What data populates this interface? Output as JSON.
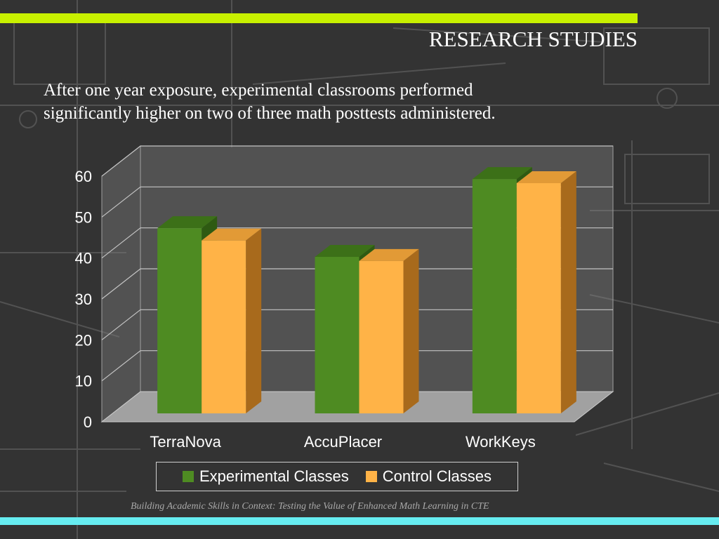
{
  "slide": {
    "title": "RESEARCH STUDIES",
    "subtitle_line1": "After one year exposure, experimental classrooms performed",
    "subtitle_line2": "significantly higher on two of three math posttests administered.",
    "footnote": "Building Academic Skills in Context: Testing the Value of Enhanced Math Learning in CTE"
  },
  "colors": {
    "accent_top": "#c8f000",
    "accent_bottom": "#66ecf0",
    "experimental": "#4e8b22",
    "control": "#ffb347"
  },
  "chart_data": {
    "type": "bar",
    "title": "",
    "xlabel": "",
    "ylabel": "",
    "categories": [
      "TerraNova",
      "AccuPlacer",
      "WorkKeys"
    ],
    "series": [
      {
        "name": "Experimental Classes",
        "values": [
          49,
          42,
          61
        ]
      },
      {
        "name": "Control Classes",
        "values": [
          46,
          41,
          60
        ]
      }
    ],
    "ylim": [
      0,
      60
    ],
    "yticks": [
      "0",
      "10",
      "20",
      "30",
      "40",
      "50",
      "60"
    ],
    "grid": true,
    "legend_position": "bottom",
    "three_d": true
  }
}
